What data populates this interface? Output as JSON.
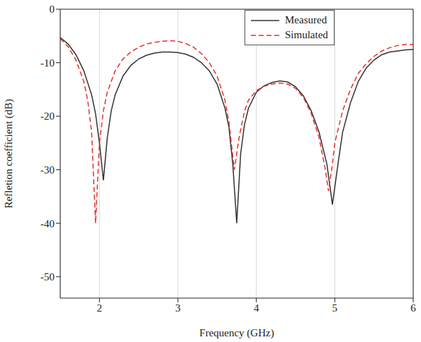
{
  "chart_data": {
    "type": "line",
    "xlabel": "Frequency (GHz)",
    "ylabel": "Refletion coefficient (dB)",
    "xlim": [
      1.5,
      6
    ],
    "ylim": [
      -54,
      0
    ],
    "xticks": [
      2,
      3,
      4,
      5,
      6
    ],
    "yticks": [
      0,
      -10,
      -20,
      -30,
      -40,
      -50
    ],
    "grid": true,
    "legend": "upper right",
    "series": [
      {
        "name": "Measured",
        "color": "#333333",
        "line_style": "solid",
        "x": [
          1.5,
          1.6,
          1.7,
          1.8,
          1.9,
          1.95,
          2.0,
          2.05,
          2.1,
          2.15,
          2.2,
          2.3,
          2.4,
          2.5,
          2.6,
          2.7,
          2.8,
          2.9,
          3.0,
          3.1,
          3.2,
          3.3,
          3.4,
          3.5,
          3.6,
          3.65,
          3.7,
          3.75,
          3.8,
          3.85,
          3.9,
          4.0,
          4.1,
          4.2,
          4.3,
          4.4,
          4.5,
          4.6,
          4.7,
          4.8,
          4.9,
          4.97,
          5.05,
          5.1,
          5.2,
          5.3,
          5.4,
          5.5,
          5.6,
          5.7,
          5.8,
          5.9,
          6.0
        ],
        "values": [
          -5.3,
          -6.5,
          -8.5,
          -11.5,
          -16,
          -19.5,
          -25,
          -32,
          -24,
          -19,
          -16,
          -12.5,
          -10.5,
          -9.3,
          -8.6,
          -8.2,
          -8.0,
          -8.0,
          -8.1,
          -8.4,
          -9.0,
          -10,
          -11.5,
          -14,
          -18.5,
          -22,
          -29,
          -40,
          -27,
          -21.5,
          -18.5,
          -15.5,
          -14.3,
          -13.7,
          -13.4,
          -13.6,
          -14.5,
          -16.2,
          -19,
          -23,
          -29,
          -36.5,
          -28,
          -23,
          -17.5,
          -13.5,
          -11,
          -9.5,
          -8.5,
          -8.0,
          -7.8,
          -7.6,
          -7.5
        ]
      },
      {
        "name": "Simulated",
        "color": "#e8302a",
        "line_style": "dashed",
        "x": [
          1.5,
          1.6,
          1.7,
          1.8,
          1.85,
          1.9,
          1.95,
          2.0,
          2.05,
          2.1,
          2.2,
          2.3,
          2.4,
          2.5,
          2.6,
          2.7,
          2.8,
          2.9,
          3.0,
          3.1,
          3.2,
          3.3,
          3.4,
          3.5,
          3.6,
          3.65,
          3.72,
          3.78,
          3.85,
          3.9,
          4.0,
          4.1,
          4.2,
          4.3,
          4.4,
          4.5,
          4.6,
          4.7,
          4.8,
          4.88,
          4.92,
          4.97,
          5.0,
          5.1,
          5.2,
          5.3,
          5.4,
          5.5,
          5.6,
          5.7,
          5.8,
          5.9,
          6.0
        ],
        "values": [
          -5.5,
          -7,
          -9.5,
          -13.5,
          -17,
          -23,
          -40,
          -25,
          -19,
          -15.5,
          -11.5,
          -9.3,
          -8,
          -7.1,
          -6.5,
          -6.2,
          -6.0,
          -5.9,
          -6.0,
          -6.4,
          -7.1,
          -8.3,
          -10,
          -12.5,
          -17,
          -21,
          -30,
          -24,
          -19,
          -17,
          -15.2,
          -14.4,
          -14.0,
          -13.8,
          -14.0,
          -14.8,
          -16.5,
          -19.5,
          -24,
          -30,
          -34,
          -29,
          -25,
          -19,
          -15,
          -12,
          -10.2,
          -8.8,
          -7.8,
          -7.2,
          -6.8,
          -6.6,
          -6.6
        ]
      }
    ]
  }
}
